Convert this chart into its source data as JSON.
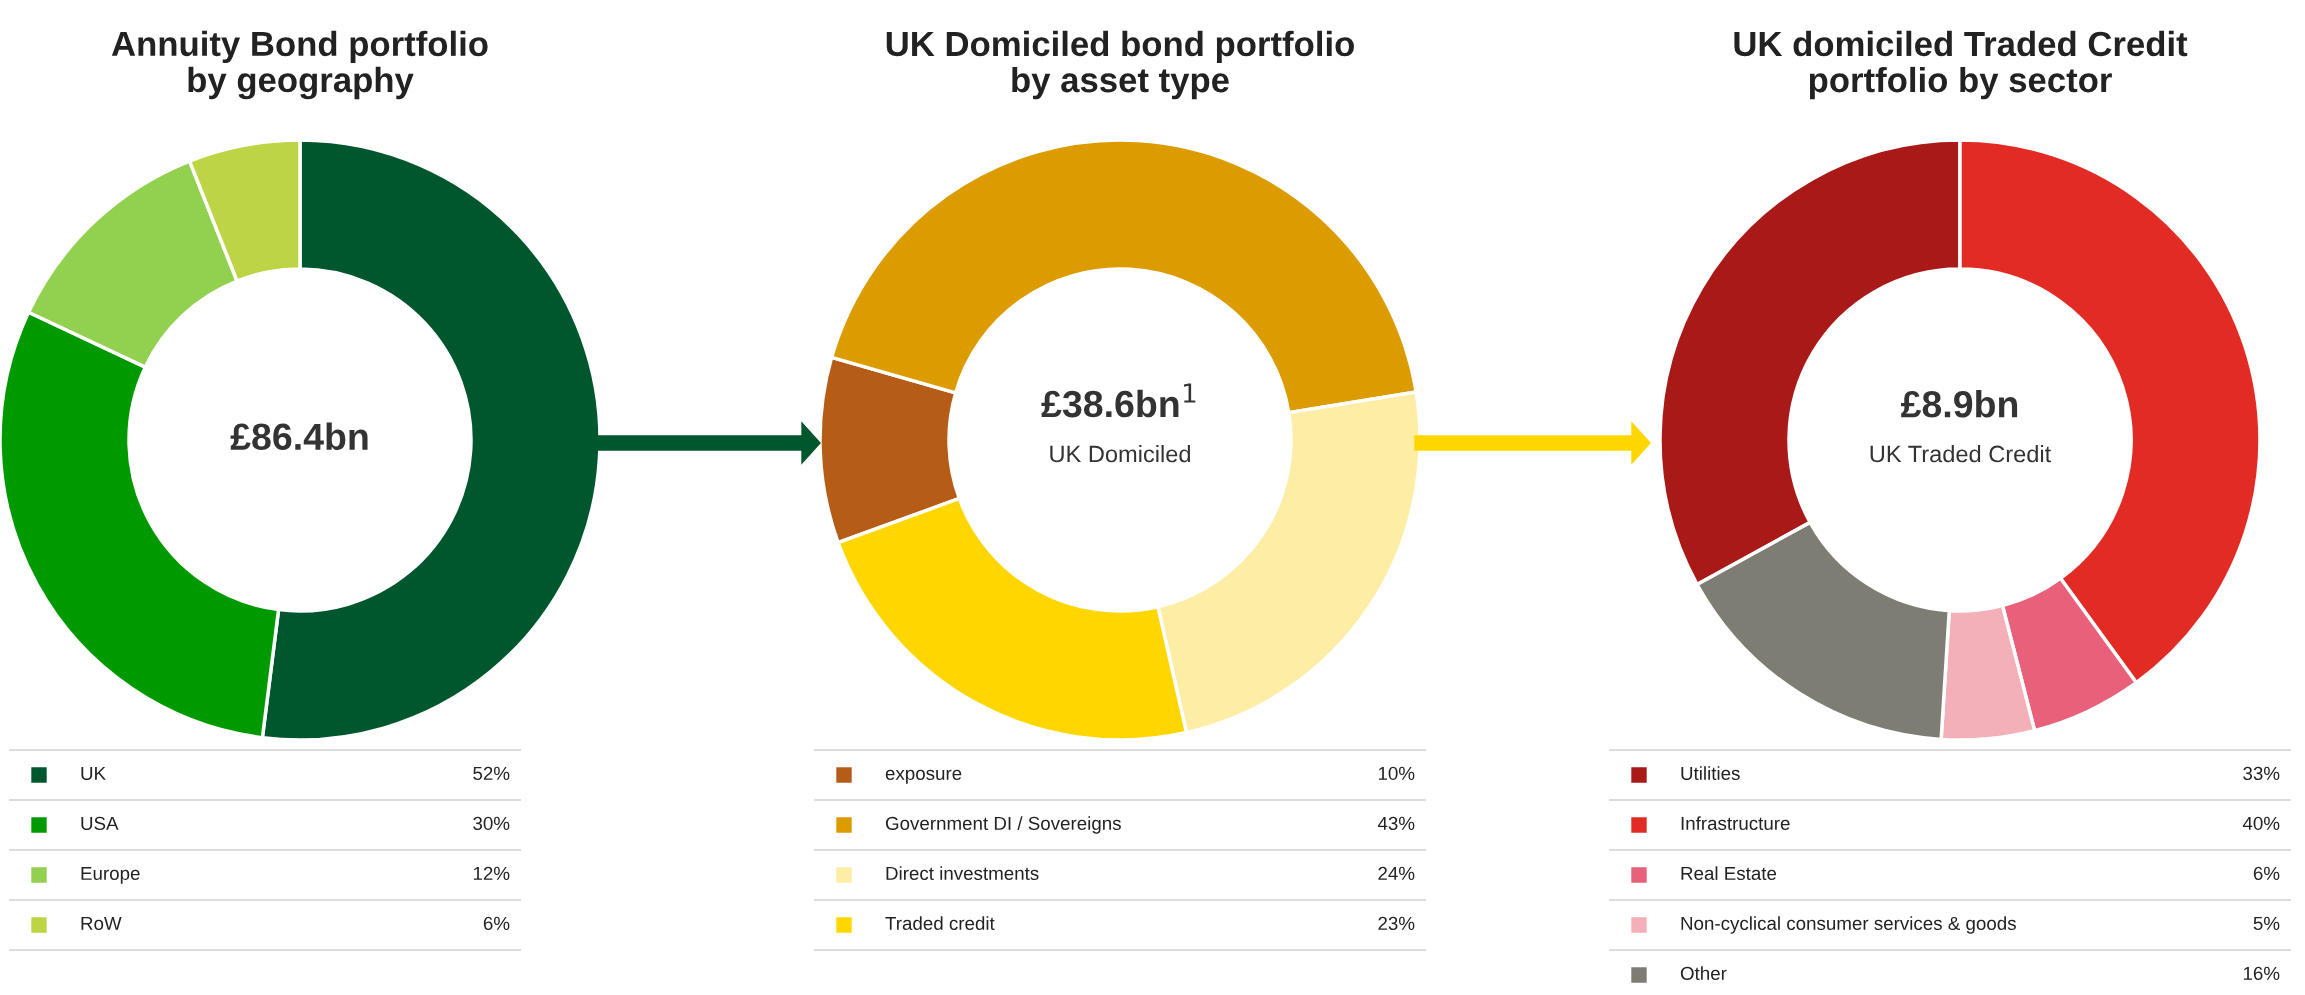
{
  "chart_data": [
    {
      "type": "donut",
      "title": "Annuity Bond portfolio\nby geography",
      "categories": [
        "UK",
        "USA",
        "Europe",
        "RoW"
      ],
      "values": [
        52,
        30,
        12,
        6
      ],
      "colors": [
        "#00572e",
        "#009a00",
        "#92d050",
        "#bdd444"
      ],
      "value_labels": [
        "52%",
        "30%",
        "12%",
        "6%"
      ],
      "legend": "bottom",
      "annotations": [
        "£86.4bn"
      ]
    },
    {
      "type": "donut",
      "title": "UK Domiciled bond portfolio\nby asset type",
      "categories": [
        "exposure",
        "Government DI / Sovereigns",
        "Direct investments",
        "Traded credit"
      ],
      "values": [
        10,
        43,
        24,
        23
      ],
      "colors": [
        "#b55c17",
        "#dc9c00",
        "#feeda5",
        "#ffd600"
      ],
      "value_labels": [
        "10%",
        "43%",
        "24%",
        "23%"
      ],
      "legend": "bottom",
      "annotations": [
        "£38.6bn$^{1}$",
        "UK Domiciled"
      ]
    },
    {
      "type": "donut",
      "title": "UK domiciled Traded Credit\nportfolio by sector",
      "categories": [
        "Utilities",
        "Infrastructure",
        "Real Estate",
        "Non-cyclical consumer services & goods",
        "Other"
      ],
      "values": [
        33,
        40,
        6,
        5,
        16
      ],
      "colors": [
        "#a81917",
        "#e22b24",
        "#e8607a",
        "#f4b0b8",
        "#7e7d74"
      ],
      "value_labels": [
        "33%",
        "40%",
        "6%",
        "5%",
        "16%"
      ],
      "legend": "bottom",
      "annotations": [
        "£8.9bn",
        "UK Traded Credit"
      ]
    }
  ]
}
